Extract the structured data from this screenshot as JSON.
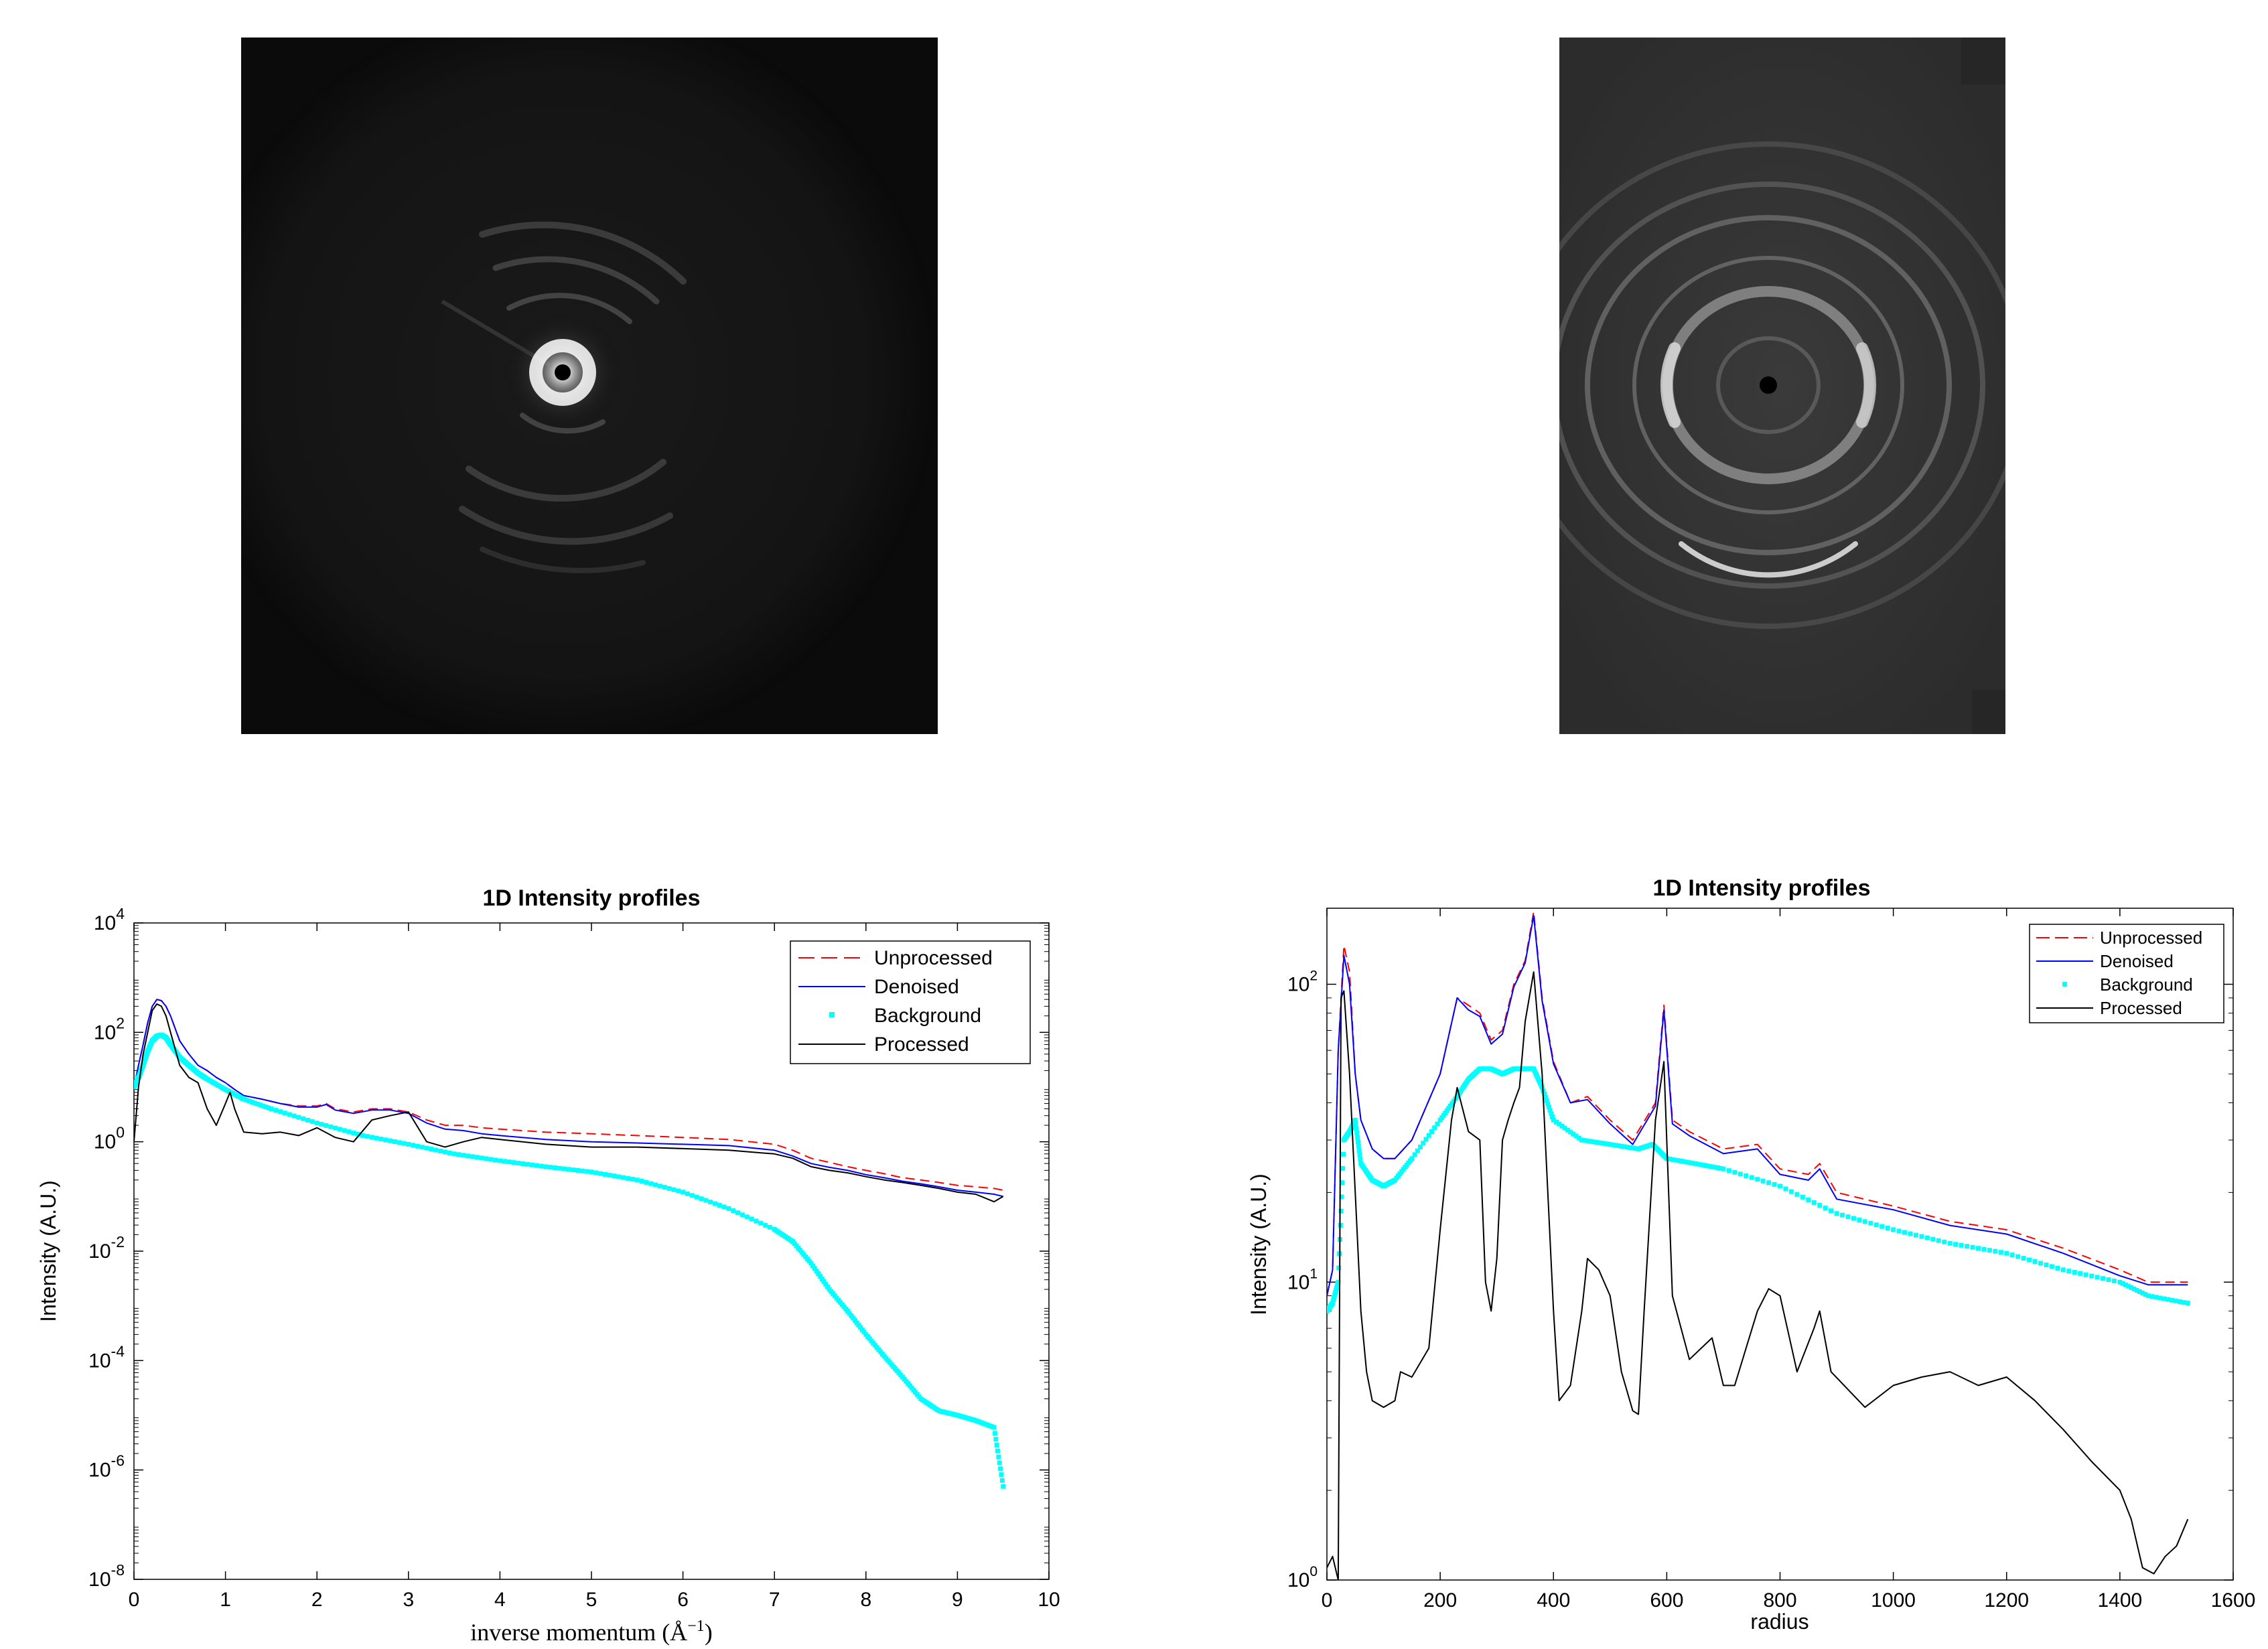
{
  "images": [
    {
      "name": "diffraction-pattern-left"
    },
    {
      "name": "diffraction-pattern-right"
    }
  ],
  "chart_data": [
    {
      "type": "line",
      "title": "1D Intensity profiles",
      "xlabel": "inverse momentum (Å",
      "xlabel_sup": "−1",
      "xlabel_close": ")",
      "ylabel": "Intensity (A.U.)",
      "xscale": "linear",
      "yscale": "log",
      "xlim": [
        0,
        10
      ],
      "ylim": [
        1e-08,
        10000.0
      ],
      "xticks": [
        "0",
        "1",
        "2",
        "3",
        "4",
        "5",
        "6",
        "7",
        "8",
        "9",
        "10"
      ],
      "yticks": [
        {
          "base": "10",
          "exp": "-8"
        },
        {
          "base": "10",
          "exp": "-6"
        },
        {
          "base": "10",
          "exp": "-4"
        },
        {
          "base": "10",
          "exp": "-2"
        },
        {
          "base": "10",
          "exp": "0"
        },
        {
          "base": "10",
          "exp": "2"
        },
        {
          "base": "10",
          "exp": "4"
        }
      ],
      "legend_position": "top-right",
      "series": [
        {
          "name": "Unprocessed",
          "style": "dashed",
          "color": "#ff0000",
          "x": [
            0,
            0.05,
            0.1,
            0.15,
            0.2,
            0.25,
            0.3,
            0.35,
            0.4,
            0.5,
            0.6,
            0.7,
            0.8,
            0.9,
            1.0,
            1.1,
            1.2,
            1.4,
            1.6,
            1.8,
            2.0,
            2.1,
            2.2,
            2.4,
            2.6,
            2.8,
            3.0,
            3.2,
            3.4,
            3.6,
            3.8,
            4.0,
            4.5,
            5.0,
            5.5,
            6.0,
            6.5,
            7.0,
            7.2,
            7.4,
            7.6,
            7.8,
            8.0,
            8.2,
            8.4,
            8.6,
            8.8,
            9.0,
            9.2,
            9.4,
            9.5
          ],
          "y": [
            10,
            25,
            60,
            150,
            300,
            400,
            380,
            300,
            200,
            70,
            40,
            25,
            20,
            15,
            12,
            9,
            7,
            6,
            5,
            4.5,
            4.5,
            5,
            4,
            3.5,
            4,
            4,
            3.5,
            2.5,
            2,
            2,
            1.8,
            1.7,
            1.5,
            1.4,
            1.3,
            1.2,
            1.1,
            0.9,
            0.7,
            0.5,
            0.42,
            0.35,
            0.3,
            0.26,
            0.22,
            0.2,
            0.18,
            0.16,
            0.15,
            0.14,
            0.13
          ]
        },
        {
          "name": "Denoised",
          "style": "solid",
          "color": "#0000ff",
          "x": [
            0,
            0.05,
            0.1,
            0.15,
            0.2,
            0.25,
            0.3,
            0.35,
            0.4,
            0.5,
            0.6,
            0.7,
            0.8,
            0.9,
            1.0,
            1.1,
            1.2,
            1.4,
            1.6,
            1.8,
            2.0,
            2.1,
            2.2,
            2.4,
            2.6,
            2.8,
            3.0,
            3.2,
            3.4,
            3.6,
            3.8,
            4.0,
            4.5,
            5.0,
            5.5,
            6.0,
            6.5,
            7.0,
            7.2,
            7.4,
            7.6,
            7.8,
            8.0,
            8.2,
            8.4,
            8.6,
            8.8,
            9.0,
            9.2,
            9.4,
            9.5
          ],
          "y": [
            10,
            25,
            60,
            150,
            300,
            400,
            380,
            300,
            200,
            70,
            40,
            25,
            20,
            15,
            12,
            9,
            7,
            6,
            5,
            4.3,
            4.3,
            4.8,
            3.8,
            3.3,
            3.8,
            3.8,
            3.3,
            2.2,
            1.7,
            1.6,
            1.4,
            1.3,
            1.1,
            1.0,
            0.95,
            0.9,
            0.85,
            0.7,
            0.55,
            0.4,
            0.34,
            0.3,
            0.25,
            0.22,
            0.19,
            0.17,
            0.15,
            0.13,
            0.12,
            0.11,
            0.1
          ]
        },
        {
          "name": "Background",
          "style": "markers",
          "color": "#00ffff",
          "x": [
            0,
            0.05,
            0.1,
            0.15,
            0.2,
            0.25,
            0.3,
            0.35,
            0.4,
            0.5,
            0.6,
            0.7,
            0.8,
            1.0,
            1.2,
            1.5,
            2.0,
            2.5,
            3.0,
            3.5,
            4.0,
            4.5,
            5.0,
            5.5,
            6.0,
            6.5,
            7.0,
            7.2,
            7.4,
            7.6,
            7.8,
            8.0,
            8.2,
            8.4,
            8.6,
            8.8,
            9.0,
            9.2,
            9.4,
            9.5
          ],
          "y": [
            10,
            15,
            25,
            45,
            70,
            85,
            90,
            80,
            60,
            35,
            25,
            18,
            14,
            9,
            6,
            4,
            2.2,
            1.3,
            0.9,
            0.6,
            0.45,
            0.35,
            0.28,
            0.2,
            0.12,
            0.06,
            0.025,
            0.015,
            0.006,
            0.002,
            0.0008,
            0.0003,
            0.00012,
            5e-05,
            2e-05,
            1.2e-05,
            1e-05,
            8e-06,
            6e-06,
            5e-07
          ]
        },
        {
          "name": "Processed",
          "style": "solid",
          "color": "#000000",
          "x": [
            0,
            0.05,
            0.1,
            0.15,
            0.2,
            0.25,
            0.3,
            0.35,
            0.4,
            0.5,
            0.6,
            0.7,
            0.8,
            0.9,
            1.0,
            1.05,
            1.1,
            1.2,
            1.4,
            1.6,
            1.8,
            2.0,
            2.2,
            2.4,
            2.6,
            2.8,
            3.0,
            3.2,
            3.4,
            3.6,
            3.8,
            4.0,
            4.5,
            5.0,
            5.5,
            6.0,
            6.5,
            7.0,
            7.2,
            7.4,
            7.6,
            7.8,
            8.0,
            8.2,
            8.4,
            8.6,
            8.8,
            9.0,
            9.2,
            9.4,
            9.5
          ],
          "y": [
            1,
            10,
            40,
            100,
            250,
            330,
            300,
            200,
            100,
            25,
            15,
            12,
            4,
            2,
            5,
            8,
            4,
            1.5,
            1.4,
            1.5,
            1.3,
            1.8,
            1.2,
            1.0,
            2.5,
            3,
            3.5,
            1.0,
            0.8,
            1.0,
            1.2,
            1.1,
            0.9,
            0.8,
            0.8,
            0.75,
            0.7,
            0.6,
            0.5,
            0.35,
            0.3,
            0.27,
            0.23,
            0.2,
            0.18,
            0.16,
            0.14,
            0.12,
            0.11,
            0.08,
            0.1
          ]
        }
      ]
    },
    {
      "type": "line",
      "title": "1D Intensity profiles",
      "xlabel": "radius",
      "ylabel": "Intensity (A.U.)",
      "xscale": "linear",
      "yscale": "log",
      "xlim": [
        0,
        1600
      ],
      "ylim": [
        1,
        180
      ],
      "xticks": [
        "0",
        "200",
        "400",
        "600",
        "800",
        "1000",
        "1200",
        "1400",
        "1600"
      ],
      "yticks": [
        {
          "base": "10",
          "exp": "0",
          "value": 1
        },
        {
          "base": "10",
          "exp": "1",
          "value": 10
        },
        {
          "base": "10",
          "exp": "2",
          "value": 100
        }
      ],
      "legend_position": "top-right",
      "series": [
        {
          "name": "Unprocessed",
          "style": "dashed",
          "color": "#ff0000",
          "x": [
            0,
            10,
            20,
            30,
            40,
            50,
            60,
            80,
            100,
            120,
            150,
            200,
            230,
            250,
            270,
            290,
            310,
            330,
            350,
            365,
            380,
            400,
            430,
            460,
            500,
            540,
            580,
            595,
            610,
            640,
            700,
            760,
            800,
            850,
            870,
            900,
            1000,
            1100,
            1200,
            1300,
            1400,
            1450,
            1520
          ],
          "y": [
            9,
            11,
            60,
            135,
            110,
            50,
            35,
            28,
            26,
            26,
            30,
            50,
            90,
            85,
            80,
            65,
            70,
            100,
            120,
            175,
            90,
            55,
            40,
            42,
            35,
            30,
            40,
            85,
            35,
            32,
            28,
            29,
            24,
            23,
            25,
            20,
            18,
            16,
            15,
            13,
            11,
            10,
            10
          ]
        },
        {
          "name": "Denoised",
          "style": "solid",
          "color": "#0000ff",
          "x": [
            0,
            10,
            20,
            30,
            40,
            50,
            60,
            80,
            100,
            120,
            150,
            200,
            230,
            250,
            270,
            290,
            310,
            330,
            350,
            365,
            380,
            400,
            430,
            460,
            500,
            540,
            580,
            595,
            610,
            640,
            700,
            760,
            800,
            850,
            870,
            900,
            1000,
            1100,
            1200,
            1300,
            1400,
            1450,
            1520
          ],
          "y": [
            9,
            11,
            60,
            125,
            100,
            50,
            35,
            28,
            26,
            26,
            30,
            50,
            90,
            82,
            78,
            63,
            68,
            98,
            118,
            170,
            88,
            54,
            40,
            41,
            34,
            29,
            39,
            82,
            34,
            31,
            27,
            28,
            23,
            22,
            24,
            19,
            17.5,
            15.5,
            14.5,
            12.5,
            10.5,
            9.8,
            9.8
          ]
        },
        {
          "name": "Background",
          "style": "markers",
          "color": "#00ffff",
          "x": [
            0,
            10,
            20,
            30,
            40,
            50,
            60,
            80,
            100,
            120,
            150,
            200,
            230,
            250,
            270,
            290,
            310,
            330,
            350,
            365,
            380,
            400,
            450,
            500,
            550,
            575,
            600,
            650,
            700,
            800,
            900,
            1000,
            1100,
            1200,
            1300,
            1400,
            1450,
            1520
          ],
          "y": [
            8,
            8.5,
            10,
            30,
            32,
            35,
            25,
            22,
            21,
            22,
            26,
            35,
            42,
            48,
            52,
            52,
            50,
            52,
            52,
            52,
            45,
            35,
            30,
            29,
            28,
            29,
            26,
            25,
            24,
            21,
            17,
            15,
            13.5,
            12.5,
            11,
            10,
            9,
            8.5
          ]
        },
        {
          "name": "Processed",
          "style": "solid",
          "color": "#000000",
          "x": [
            0,
            10,
            20,
            25,
            30,
            40,
            50,
            60,
            70,
            80,
            100,
            120,
            130,
            150,
            180,
            200,
            220,
            230,
            250,
            270,
            280,
            290,
            300,
            310,
            320,
            330,
            340,
            350,
            365,
            380,
            400,
            410,
            430,
            450,
            460,
            480,
            500,
            520,
            540,
            550,
            560,
            580,
            595,
            610,
            640,
            680,
            700,
            720,
            760,
            780,
            800,
            830,
            860,
            870,
            890,
            950,
            1000,
            1050,
            1100,
            1150,
            1200,
            1250,
            1300,
            1350,
            1400,
            1420,
            1440,
            1460,
            1480,
            1500,
            1520
          ],
          "y": [
            1.1,
            1.2,
            1.0,
            90,
            95,
            50,
            20,
            8,
            5,
            4,
            3.8,
            4,
            5,
            4.8,
            6,
            15,
            35,
            45,
            32,
            30,
            10,
            8,
            12,
            30,
            35,
            40,
            45,
            75,
            110,
            50,
            8,
            4,
            4.5,
            8,
            12,
            11,
            9,
            5,
            3.7,
            3.6,
            8,
            35,
            55,
            9,
            5.5,
            6.5,
            4.5,
            4.5,
            8,
            9.5,
            9,
            5,
            7,
            8,
            5,
            3.8,
            4.5,
            4.8,
            5,
            4.5,
            4.8,
            4,
            3.2,
            2.5,
            2,
            1.6,
            1.1,
            1.05,
            1.2,
            1.3,
            1.6
          ]
        }
      ]
    }
  ]
}
